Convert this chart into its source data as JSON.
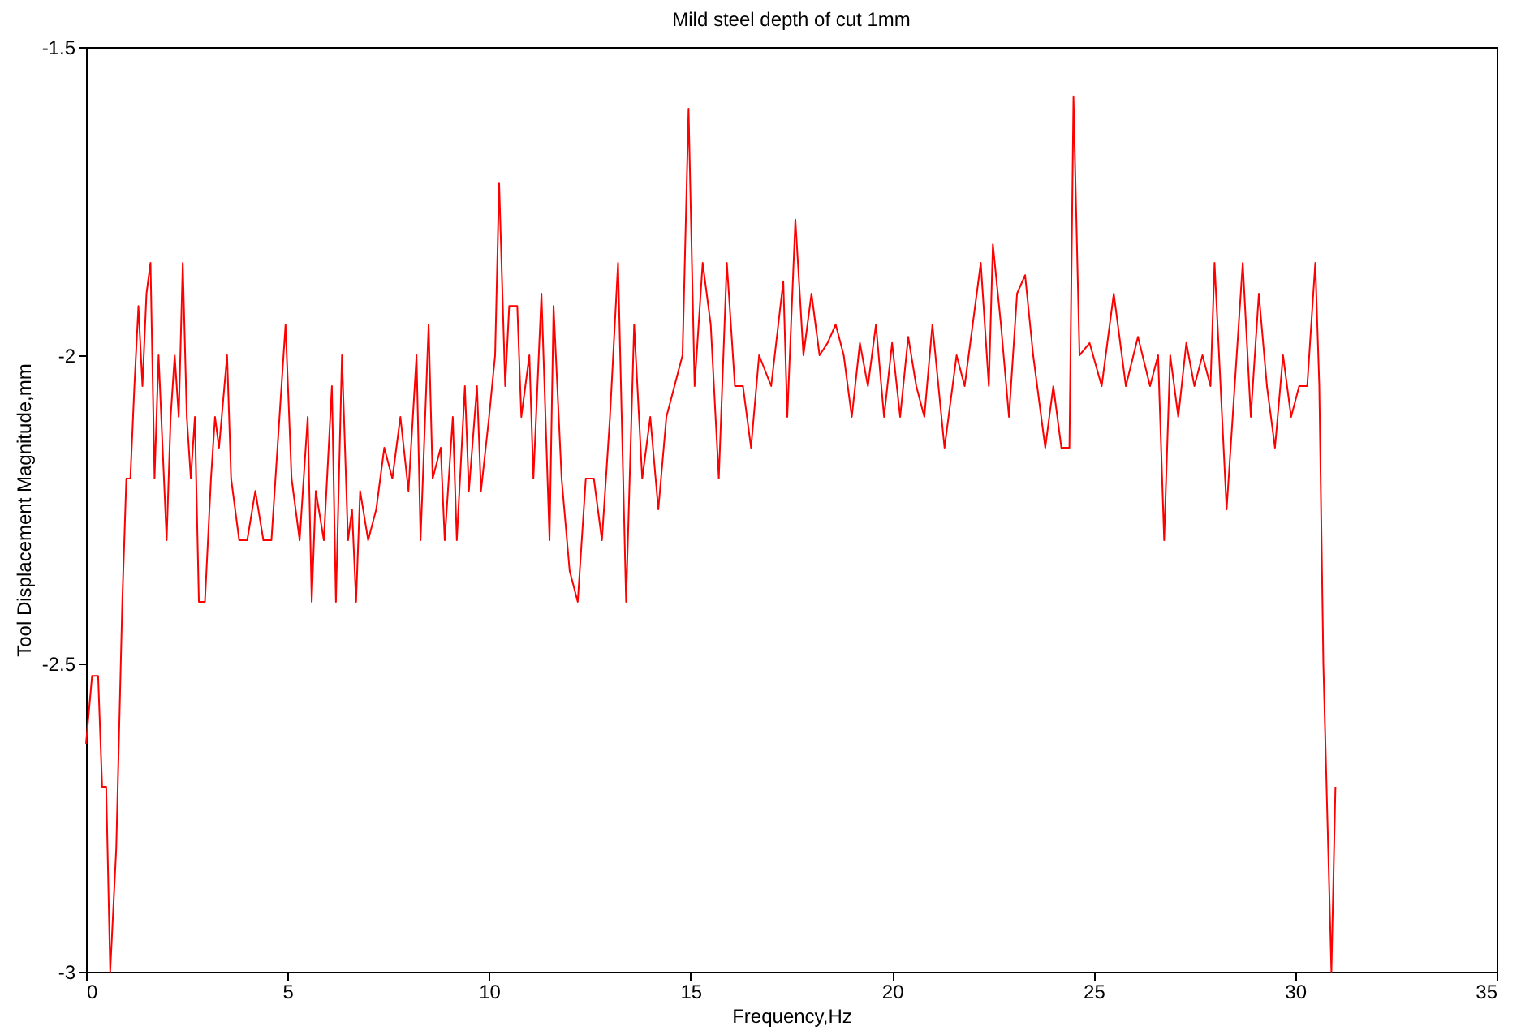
{
  "chart_data": {
    "type": "line",
    "title": "Mild steel depth of cut 1mm",
    "xlabel": "Frequency,Hz",
    "ylabel": "Tool Displacement Magnitude,mm",
    "xlim": [
      0,
      35
    ],
    "xticks": [
      0,
      5,
      10,
      15,
      20,
      25,
      30,
      35
    ],
    "ylim": [
      -3,
      -1.5
    ],
    "yticks": [
      -3,
      -2.5,
      -2,
      -1.5
    ],
    "grid": false,
    "marker": "none",
    "line_style": "solid",
    "series": [
      {
        "color": "#ff0000",
        "x": [
          0,
          0.15,
          0.3,
          0.4,
          0.5,
          0.6,
          0.75,
          0.9,
          1.0,
          1.1,
          1.2,
          1.3,
          1.4,
          1.5,
          1.6,
          1.7,
          1.8,
          1.9,
          2.0,
          2.1,
          2.2,
          2.3,
          2.4,
          2.5,
          2.6,
          2.7,
          2.8,
          2.95,
          3.1,
          3.2,
          3.3,
          3.5,
          3.6,
          3.8,
          4.0,
          4.2,
          4.4,
          4.6,
          4.8,
          4.95,
          5.1,
          5.3,
          5.5,
          5.6,
          5.7,
          5.9,
          6.1,
          6.2,
          6.35,
          6.5,
          6.6,
          6.7,
          6.8,
          7.0,
          7.2,
          7.4,
          7.6,
          7.8,
          8.0,
          8.2,
          8.3,
          8.5,
          8.6,
          8.8,
          8.9,
          9.1,
          9.2,
          9.4,
          9.5,
          9.7,
          9.8,
          10.0,
          10.15,
          10.25,
          10.4,
          10.5,
          10.7,
          10.8,
          11.0,
          11.1,
          11.3,
          11.5,
          11.6,
          11.8,
          12.0,
          12.2,
          12.4,
          12.6,
          12.8,
          13.0,
          13.2,
          13.4,
          13.6,
          13.8,
          14.0,
          14.2,
          14.4,
          14.6,
          14.8,
          14.95,
          15.1,
          15.3,
          15.5,
          15.7,
          15.9,
          16.1,
          16.3,
          16.5,
          16.7,
          17.0,
          17.3,
          17.4,
          17.6,
          17.8,
          18.0,
          18.2,
          18.4,
          18.6,
          18.8,
          19.0,
          19.2,
          19.4,
          19.6,
          19.8,
          20.0,
          20.2,
          20.4,
          20.6,
          20.8,
          21.0,
          21.3,
          21.6,
          21.8,
          22.0,
          22.2,
          22.4,
          22.5,
          22.7,
          22.9,
          23.1,
          23.3,
          23.5,
          23.8,
          24.0,
          24.2,
          24.4,
          24.5,
          24.65,
          24.9,
          25.2,
          25.5,
          25.8,
          26.1,
          26.4,
          26.6,
          26.75,
          26.9,
          27.1,
          27.3,
          27.5,
          27.7,
          27.9,
          28.0,
          28.3,
          28.5,
          28.7,
          28.9,
          29.1,
          29.3,
          29.5,
          29.7,
          29.9,
          30.1,
          30.3,
          30.5,
          30.6,
          30.7,
          30.8,
          30.9,
          31.0
        ],
        "values": [
          -2.63,
          -2.52,
          -2.52,
          -2.7,
          -2.7,
          -3.0,
          -2.8,
          -2.4,
          -2.2,
          -2.2,
          -2.05,
          -1.92,
          -2.05,
          -1.9,
          -1.85,
          -2.2,
          -2.0,
          -2.15,
          -2.3,
          -2.1,
          -2.0,
          -2.1,
          -1.85,
          -2.1,
          -2.2,
          -2.1,
          -2.4,
          -2.4,
          -2.2,
          -2.1,
          -2.15,
          -2.0,
          -2.2,
          -2.3,
          -2.3,
          -2.22,
          -2.3,
          -2.3,
          -2.1,
          -1.95,
          -2.2,
          -2.3,
          -2.1,
          -2.4,
          -2.22,
          -2.3,
          -2.05,
          -2.4,
          -2.0,
          -2.3,
          -2.25,
          -2.4,
          -2.22,
          -2.3,
          -2.25,
          -2.15,
          -2.2,
          -2.1,
          -2.22,
          -2.0,
          -2.3,
          -1.95,
          -2.2,
          -2.15,
          -2.3,
          -2.1,
          -2.3,
          -2.05,
          -2.22,
          -2.05,
          -2.22,
          -2.1,
          -2.0,
          -1.72,
          -2.05,
          -1.92,
          -1.92,
          -2.1,
          -2.0,
          -2.2,
          -1.9,
          -2.3,
          -1.92,
          -2.2,
          -2.35,
          -2.4,
          -2.2,
          -2.2,
          -2.3,
          -2.1,
          -1.85,
          -2.4,
          -1.95,
          -2.2,
          -2.1,
          -2.25,
          -2.1,
          -2.05,
          -2.0,
          -1.6,
          -2.05,
          -1.85,
          -1.95,
          -2.2,
          -1.85,
          -2.05,
          -2.05,
          -2.15,
          -2.0,
          -2.05,
          -1.88,
          -2.1,
          -1.78,
          -2.0,
          -1.9,
          -2.0,
          -1.98,
          -1.95,
          -2.0,
          -2.1,
          -1.98,
          -2.05,
          -1.95,
          -2.1,
          -1.98,
          -2.1,
          -1.97,
          -2.05,
          -2.1,
          -1.95,
          -2.15,
          -2.0,
          -2.05,
          -1.95,
          -1.85,
          -2.05,
          -1.82,
          -1.95,
          -2.1,
          -1.9,
          -1.87,
          -2.0,
          -2.15,
          -2.05,
          -2.15,
          -2.15,
          -1.58,
          -2.0,
          -1.98,
          -2.05,
          -1.9,
          -2.05,
          -1.97,
          -2.05,
          -2.0,
          -2.3,
          -2.0,
          -2.1,
          -1.98,
          -2.05,
          -2.0,
          -2.05,
          -1.85,
          -2.25,
          -2.05,
          -1.85,
          -2.1,
          -1.9,
          -2.05,
          -2.15,
          -2.0,
          -2.1,
          -2.05,
          -2.05,
          -1.85,
          -2.05,
          -2.5,
          -2.75,
          -3.0,
          -2.7
        ]
      }
    ]
  }
}
